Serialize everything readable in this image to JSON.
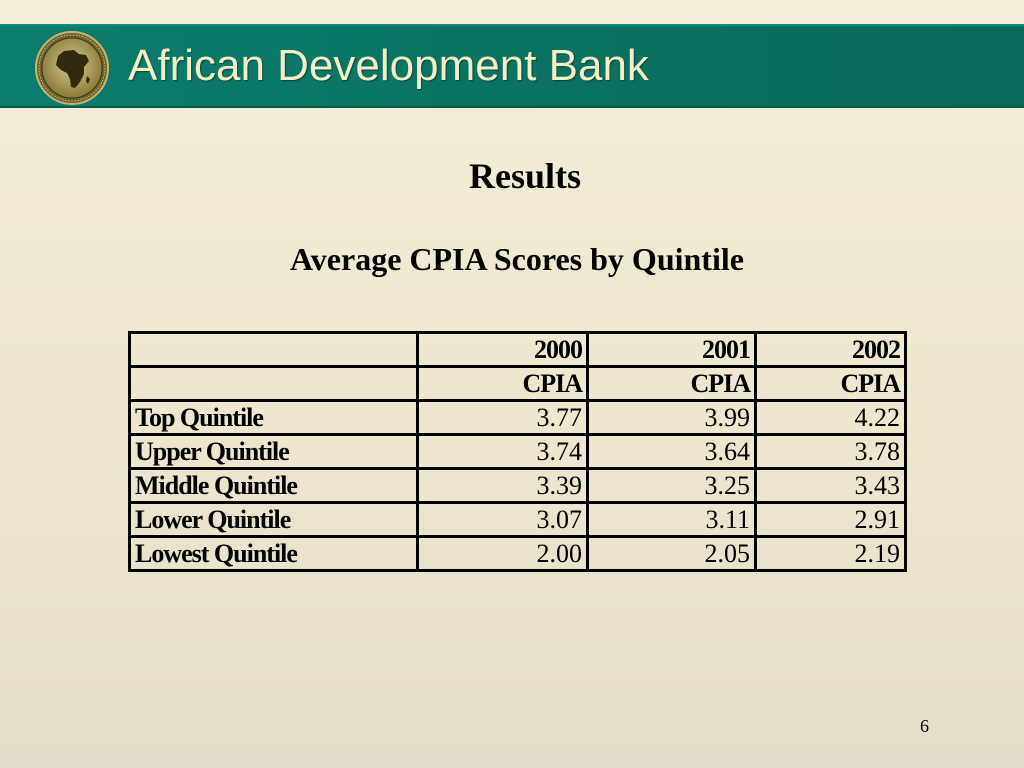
{
  "header": {
    "bank_name": "African Development Bank",
    "logo_icon": "afdb-logo-icon",
    "banner_color": "#0a7464",
    "banner_text_color": "#f4eec4"
  },
  "slide": {
    "title": "Results",
    "subtitle": "Average CPIA Scores by Quintile",
    "page_number": "6"
  },
  "table": {
    "years": [
      "2000",
      "2001",
      "2002"
    ],
    "measures": [
      "CPIA",
      "CPIA",
      "CPIA"
    ],
    "rows": [
      {
        "label": "Top Quintile",
        "values": [
          "3.77",
          "3.99",
          "4.22"
        ]
      },
      {
        "label": "Upper Quintile",
        "values": [
          "3.74",
          "3.64",
          "3.78"
        ]
      },
      {
        "label": "Middle Quintile",
        "values": [
          "3.39",
          "3.25",
          "3.43"
        ]
      },
      {
        "label": "Lower Quintile",
        "values": [
          "3.07",
          "3.11",
          "2.91"
        ]
      },
      {
        "label": "Lowest Quintile",
        "values": [
          "2.00",
          "2.05",
          "2.19"
        ]
      }
    ]
  }
}
